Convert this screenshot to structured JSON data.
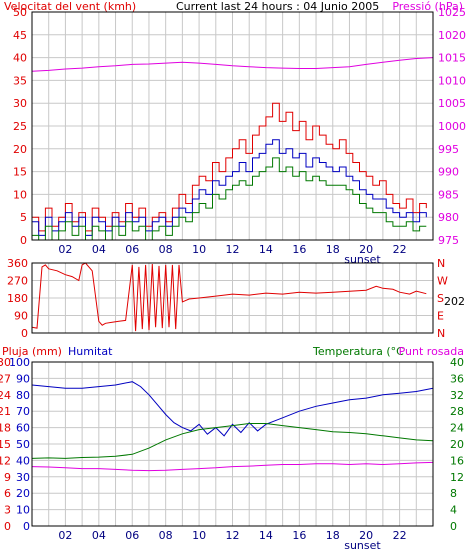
{
  "header": {
    "left_title": "Velocitat del vent (kmh)",
    "center_title": "Current last 24 hours : 04 Junio 2005",
    "right_title": "Pressió (hPa)"
  },
  "colors": {
    "background": "#ffffff",
    "plot_bg": "#ffffff",
    "grid": "#c8c8c8",
    "frame": "#000000",
    "red": "#e00000",
    "blue": "#0000c0",
    "green": "#007800",
    "magenta": "#e000e0",
    "left_axis_text": "#e00000",
    "press_axis_text": "#e000e0"
  },
  "x_axis": {
    "tick_labels": [
      "02",
      "04",
      "06",
      "08",
      "10",
      "12",
      "14",
      "16",
      "18",
      "20",
      "22"
    ],
    "sunset_label": "sunset",
    "sunset_hour": 19.3
  },
  "chart_data": [
    {
      "type": "line",
      "panel": "wind_pressure",
      "y_left_ticks": [
        "0",
        "5",
        "10",
        "15",
        "20",
        "25",
        "30",
        "35",
        "40",
        "45",
        "50"
      ],
      "ylim_left": [
        0,
        50
      ],
      "y_right_ticks": [
        "975",
        "980",
        "985",
        "990",
        "995",
        "1000",
        "1005",
        "1010",
        "1015",
        "1020",
        "1025"
      ],
      "ylim_right": [
        975,
        1025
      ],
      "x_range": [
        0,
        24
      ],
      "series": [
        {
          "key": "gust",
          "color": "#e00000",
          "axis": "left",
          "x": [
            0,
            0.4,
            0.8,
            1.2,
            1.6,
            2.0,
            2.4,
            2.8,
            3.2,
            3.6,
            4.0,
            4.4,
            4.8,
            5.2,
            5.6,
            6.0,
            6.4,
            6.8,
            7.2,
            7.6,
            8.0,
            8.4,
            8.8,
            9.2,
            9.6,
            10.0,
            10.4,
            10.8,
            11.2,
            11.6,
            12.0,
            12.4,
            12.8,
            13.2,
            13.6,
            14.0,
            14.4,
            14.8,
            15.2,
            15.6,
            16.0,
            16.4,
            16.8,
            17.2,
            17.6,
            18.0,
            18.4,
            18.8,
            19.2,
            19.6,
            20.0,
            20.4,
            20.8,
            21.2,
            21.6,
            22.0,
            22.4,
            22.8,
            23.2,
            23.6
          ],
          "values": [
            5,
            2,
            7,
            3,
            5,
            8,
            4,
            6,
            2,
            7,
            5,
            3,
            6,
            4,
            8,
            5,
            7,
            3,
            5,
            6,
            4,
            7,
            10,
            8,
            12,
            14,
            13,
            17,
            15,
            18,
            20,
            22,
            19,
            23,
            25,
            27,
            30,
            26,
            28,
            24,
            26,
            22,
            25,
            23,
            21,
            20,
            22,
            19,
            17,
            15,
            14,
            12,
            13,
            10,
            8,
            7,
            9,
            6,
            8,
            7
          ]
        },
        {
          "key": "average",
          "color": "#0000c0",
          "axis": "left",
          "x": [
            0,
            0.4,
            0.8,
            1.2,
            1.6,
            2.0,
            2.4,
            2.8,
            3.2,
            3.6,
            4.0,
            4.4,
            4.8,
            5.2,
            5.6,
            6.0,
            6.4,
            6.8,
            7.2,
            7.6,
            8.0,
            8.4,
            8.8,
            9.2,
            9.6,
            10.0,
            10.4,
            10.8,
            11.2,
            11.6,
            12.0,
            12.4,
            12.8,
            13.2,
            13.6,
            14.0,
            14.4,
            14.8,
            15.2,
            15.6,
            16.0,
            16.4,
            16.8,
            17.2,
            17.6,
            18.0,
            18.4,
            18.8,
            19.2,
            19.6,
            20.0,
            20.4,
            20.8,
            21.2,
            21.6,
            22.0,
            22.4,
            22.8,
            23.2,
            23.6
          ],
          "values": [
            4,
            1,
            5,
            2,
            4,
            6,
            3,
            5,
            1,
            5,
            4,
            2,
            5,
            3,
            6,
            4,
            5,
            2,
            4,
            5,
            3,
            5,
            7,
            6,
            9,
            11,
            10,
            13,
            12,
            14,
            15,
            17,
            15,
            18,
            19,
            21,
            22,
            19,
            20,
            18,
            19,
            16,
            18,
            17,
            16,
            15,
            16,
            14,
            13,
            11,
            10,
            9,
            9,
            7,
            6,
            5,
            6,
            4,
            6,
            5
          ]
        },
        {
          "key": "minimum",
          "color": "#007800",
          "axis": "left",
          "x": [
            0,
            0.4,
            0.8,
            1.2,
            1.6,
            2.0,
            2.4,
            2.8,
            3.2,
            3.6,
            4.0,
            4.4,
            4.8,
            5.2,
            5.6,
            6.0,
            6.4,
            6.8,
            7.2,
            7.6,
            8.0,
            8.4,
            8.8,
            9.2,
            9.6,
            10.0,
            10.4,
            10.8,
            11.2,
            11.6,
            12.0,
            12.4,
            12.8,
            13.2,
            13.6,
            14.0,
            14.4,
            14.8,
            15.2,
            15.6,
            16.0,
            16.4,
            16.8,
            17.2,
            17.6,
            18.0,
            18.4,
            18.8,
            19.2,
            19.6,
            20.0,
            20.4,
            20.8,
            21.2,
            21.6,
            22.0,
            22.4,
            22.8,
            23.2,
            23.6
          ],
          "values": [
            1,
            0,
            3,
            0,
            2,
            4,
            1,
            3,
            0,
            3,
            2,
            0,
            3,
            1,
            4,
            2,
            3,
            0,
            2,
            3,
            1,
            3,
            5,
            4,
            6,
            8,
            7,
            10,
            9,
            11,
            12,
            13,
            12,
            14,
            15,
            16,
            18,
            15,
            16,
            14,
            15,
            13,
            14,
            13,
            12,
            12,
            12,
            11,
            10,
            8,
            7,
            6,
            6,
            4,
            3,
            3,
            4,
            2,
            3,
            3
          ]
        },
        {
          "key": "pressure",
          "color": "#e000e0",
          "axis": "right",
          "x": [
            0,
            1,
            2,
            3,
            4,
            5,
            6,
            7,
            8,
            9,
            10,
            11,
            12,
            13,
            14,
            15,
            16,
            17,
            18,
            19,
            20,
            21,
            22,
            23,
            24
          ],
          "values": [
            1012.0,
            1012.2,
            1012.5,
            1012.7,
            1013.0,
            1013.2,
            1013.5,
            1013.6,
            1013.8,
            1014.0,
            1013.8,
            1013.5,
            1013.2,
            1013.0,
            1012.8,
            1012.7,
            1012.6,
            1012.6,
            1012.8,
            1013.0,
            1013.5,
            1014.0,
            1014.4,
            1014.8,
            1015.0
          ]
        }
      ]
    },
    {
      "type": "line",
      "panel": "wind_direction",
      "y_left_ticks": [
        "0",
        "90",
        "180",
        "270",
        "360"
      ],
      "ylim": [
        0,
        360
      ],
      "y_right_ticks": [
        "N",
        "E",
        "S",
        "W",
        "N"
      ],
      "current_value": "202",
      "x_range": [
        0,
        24
      ],
      "series": [
        {
          "key": "direction",
          "color": "#e00000",
          "x": [
            0,
            0.3,
            0.6,
            0.8,
            1.0,
            1.5,
            2.0,
            2.4,
            2.8,
            3.0,
            3.2,
            3.6,
            4.0,
            4.2,
            4.4,
            4.8,
            5.2,
            5.6,
            6.0,
            6.2,
            6.4,
            6.6,
            6.8,
            7.0,
            7.2,
            7.4,
            7.6,
            7.8,
            8.0,
            8.2,
            8.4,
            8.6,
            8.8,
            9.0,
            9.4,
            10.0,
            11.0,
            12.0,
            13.0,
            14.0,
            15.0,
            16.0,
            17.0,
            18.0,
            19.0,
            20.0,
            20.6,
            21.0,
            21.6,
            22.0,
            22.6,
            23.0,
            23.6
          ],
          "values": [
            30,
            25,
            340,
            350,
            330,
            320,
            300,
            290,
            270,
            350,
            360,
            320,
            60,
            40,
            50,
            55,
            60,
            65,
            350,
            10,
            340,
            20,
            350,
            15,
            355,
            30,
            345,
            25,
            350,
            30,
            350,
            20,
            350,
            160,
            175,
            180,
            190,
            200,
            195,
            205,
            200,
            210,
            205,
            210,
            215,
            220,
            240,
            230,
            225,
            210,
            200,
            215,
            202
          ]
        }
      ]
    },
    {
      "type": "line",
      "panel": "rain_humidity_temperature",
      "labels": {
        "rain": "Pluja (mm)",
        "humidity": "Humitat",
        "temperature": "Temperatura (°C",
        "dewpoint": "Punt rosada"
      },
      "y_left1_ticks": [
        "0",
        "3",
        "6",
        "9",
        "12",
        "15",
        "18",
        "21",
        "24",
        "27",
        "30"
      ],
      "ylim_rain": [
        0,
        30
      ],
      "y_left2_ticks": [
        "0",
        "10",
        "20",
        "30",
        "40",
        "50",
        "60",
        "70",
        "80",
        "90",
        "100"
      ],
      "ylim_humidity": [
        0,
        100
      ],
      "y_right_ticks": [
        "0",
        "4",
        "8",
        "12",
        "16",
        "20",
        "24",
        "28",
        "32",
        "36",
        "40"
      ],
      "ylim_temperature": [
        0,
        40
      ],
      "x_range": [
        0,
        24
      ],
      "series": [
        {
          "key": "humidity",
          "color": "#0000c0",
          "axis": "humidity",
          "x": [
            0,
            1,
            2,
            3,
            4,
            5,
            6,
            6.5,
            7,
            7.5,
            8,
            8.5,
            9,
            9.5,
            10,
            10.5,
            11,
            11.5,
            12,
            12.5,
            13,
            13.5,
            14,
            15,
            16,
            17,
            18,
            19,
            20,
            21,
            22,
            23,
            24
          ],
          "values": [
            86,
            85,
            84,
            84,
            85,
            86,
            88,
            85,
            80,
            74,
            68,
            63,
            60,
            58,
            62,
            56,
            60,
            55,
            62,
            57,
            63,
            58,
            62,
            66,
            70,
            73,
            75,
            77,
            78,
            80,
            81,
            82,
            84
          ]
        },
        {
          "key": "temperature",
          "color": "#007800",
          "axis": "temperature",
          "x": [
            0,
            1,
            2,
            3,
            4,
            5,
            6,
            7,
            8,
            9,
            10,
            11,
            12,
            13,
            14,
            15,
            16,
            17,
            18,
            19,
            20,
            21,
            22,
            23,
            24
          ],
          "values": [
            16.5,
            16.6,
            16.5,
            16.7,
            16.8,
            17.0,
            17.5,
            19.0,
            21.0,
            22.5,
            23.5,
            24.0,
            24.5,
            25.0,
            25.0,
            24.5,
            24.0,
            23.5,
            23.0,
            22.8,
            22.5,
            22.0,
            21.5,
            21.0,
            20.8
          ]
        },
        {
          "key": "dewpoint",
          "color": "#e000e0",
          "axis": "temperature",
          "x": [
            0,
            1,
            2,
            3,
            4,
            5,
            6,
            7,
            8,
            9,
            10,
            11,
            12,
            13,
            14,
            15,
            16,
            17,
            18,
            19,
            20,
            21,
            22,
            23,
            24
          ],
          "values": [
            14.5,
            14.4,
            14.2,
            14.0,
            14.0,
            13.8,
            13.6,
            13.5,
            13.6,
            13.8,
            14.0,
            14.2,
            14.5,
            14.6,
            14.8,
            15.0,
            15.0,
            15.2,
            15.2,
            15.0,
            15.2,
            15.0,
            15.2,
            15.4,
            15.5
          ]
        },
        {
          "key": "rain",
          "color": "#e00000",
          "axis": "rain",
          "x": [
            0,
            24
          ],
          "values": [
            0,
            0
          ]
        }
      ]
    }
  ]
}
